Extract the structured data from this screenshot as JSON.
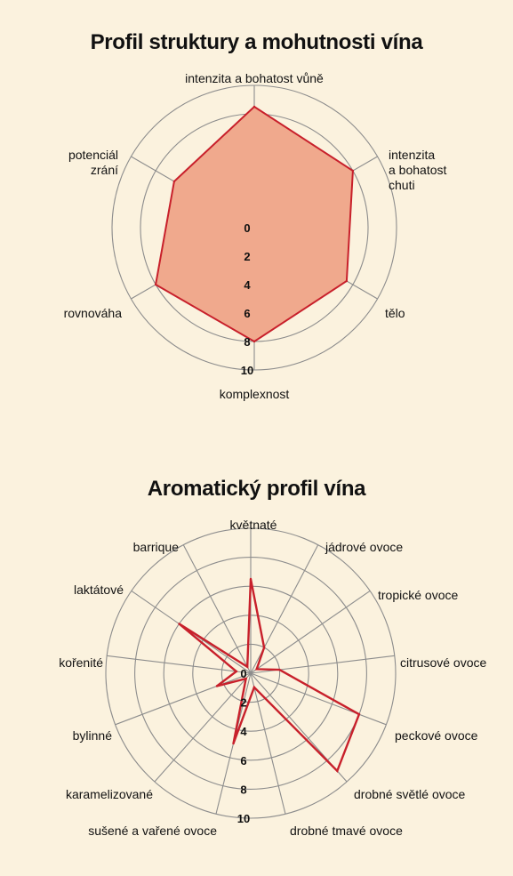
{
  "chart_data": [
    {
      "type": "radar",
      "title": "Profil struktury a mohutnosti vína",
      "range": [
        0,
        10
      ],
      "ticks": [
        "0",
        "2",
        "4",
        "6",
        "8",
        "10"
      ],
      "grid": true,
      "axes": [
        "intenzita a bohatost vůně",
        "intenzita a bohatost chuti",
        "tělo",
        "komplexnost",
        "rovnováha",
        "potenciál zrání"
      ],
      "values": [
        8.5,
        8,
        7.5,
        8,
        8,
        6.5
      ],
      "fill_color": "#f0a98d",
      "line_color": "#c8202b"
    },
    {
      "type": "radar",
      "title": "Aromatický profil vína",
      "range": [
        0,
        10
      ],
      "ticks": [
        "0",
        "2",
        "4",
        "6",
        "8",
        "10"
      ],
      "grid": true,
      "axes": [
        "květnaté",
        "jádrové ovoce",
        "tropické ovoce",
        "citrusové ovoce",
        "peckové ovoce",
        "drobné světlé ovoce",
        "drobné tmavé ovoce",
        "sušené a vařené ovoce",
        "karamelizované",
        "bylinné",
        "kořenité",
        "laktátové",
        "barrique"
      ],
      "values": [
        6.5,
        2,
        0.5,
        2,
        8,
        9,
        1,
        5,
        0.5,
        2.5,
        1,
        6,
        0.5
      ],
      "fill_color": "none",
      "line_color": "#c8202b"
    }
  ]
}
